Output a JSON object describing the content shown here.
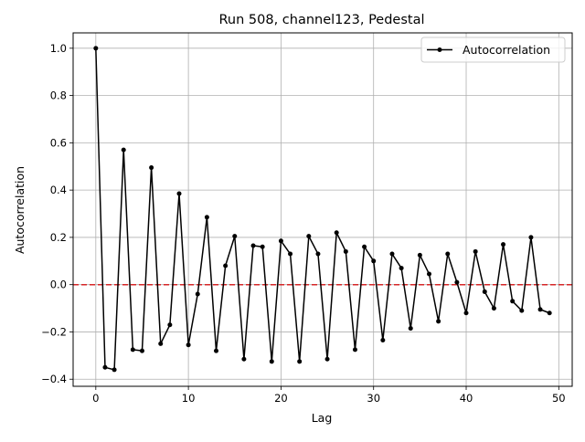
{
  "chart_data": {
    "type": "line",
    "title": "Run 508, channel123, Pedestal",
    "xlabel": "Lag",
    "ylabel": "Autocorrelation",
    "xlim": [
      -2.45,
      51.45
    ],
    "ylim": [
      -0.43,
      1.065
    ],
    "x_ticks": [
      0,
      10,
      20,
      30,
      40,
      50
    ],
    "y_ticks": [
      -0.4,
      -0.2,
      0.0,
      0.2,
      0.4,
      0.6,
      0.8,
      1.0
    ],
    "x_tick_labels": [
      "0",
      "10",
      "20",
      "30",
      "40",
      "50"
    ],
    "y_tick_labels": [
      "−0.4",
      "−0.2",
      "0.0",
      "0.2",
      "0.4",
      "0.6",
      "0.8",
      "1.0"
    ],
    "grid": true,
    "legend_position": "top-right",
    "reference_line": {
      "y": 0,
      "color": "#d62728",
      "style": "dashed"
    },
    "series": [
      {
        "name": "Autocorrelation",
        "color": "#000000",
        "marker": "dot",
        "x": [
          0,
          1,
          2,
          3,
          4,
          5,
          6,
          7,
          8,
          9,
          10,
          11,
          12,
          13,
          14,
          15,
          16,
          17,
          18,
          19,
          20,
          21,
          22,
          23,
          24,
          25,
          26,
          27,
          28,
          29,
          30,
          31,
          32,
          33,
          34,
          35,
          36,
          37,
          38,
          39,
          40,
          41,
          42,
          43,
          44,
          45,
          46,
          47,
          48,
          49
        ],
        "values": [
          1.0,
          -0.35,
          -0.36,
          0.57,
          -0.275,
          -0.28,
          0.495,
          -0.25,
          -0.17,
          0.385,
          -0.255,
          -0.04,
          0.285,
          -0.28,
          0.08,
          0.205,
          -0.315,
          0.165,
          0.16,
          -0.325,
          0.185,
          0.13,
          -0.325,
          0.205,
          0.13,
          -0.315,
          0.22,
          0.14,
          -0.275,
          0.16,
          0.1,
          -0.235,
          0.13,
          0.07,
          -0.185,
          0.125,
          0.045,
          -0.155,
          0.13,
          0.01,
          -0.12,
          0.14,
          -0.03,
          -0.1,
          0.17,
          -0.07,
          -0.11,
          0.2,
          -0.105,
          -0.12
        ]
      }
    ]
  }
}
